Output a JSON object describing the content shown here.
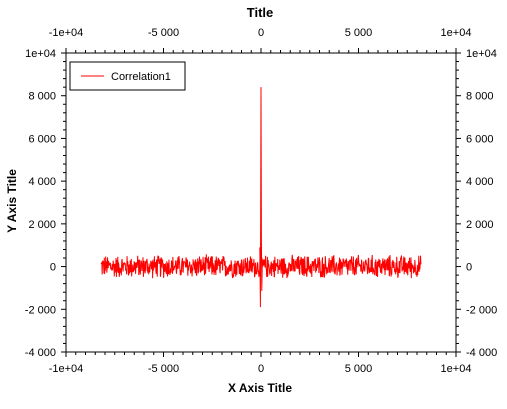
{
  "chart_data": {
    "type": "line",
    "title": "Title",
    "xlabel": "X Axis Title",
    "ylabel": "Y Axis Title",
    "xlim": [
      -10000,
      10000
    ],
    "ylim": [
      -4000,
      10000
    ],
    "x_ticks": [
      -10000,
      -5000,
      0,
      5000,
      10000
    ],
    "x_tick_labels": [
      "-1e+04",
      "-5 000",
      "0",
      "5 000",
      "1e+04"
    ],
    "y_ticks": [
      -4000,
      -2000,
      0,
      2000,
      4000,
      6000,
      8000,
      10000
    ],
    "y_tick_labels": [
      "-4 000",
      "-2 000",
      "0",
      "2 000",
      "4 000",
      "6 000",
      "8 000",
      "1e+04"
    ],
    "grid": false,
    "legend_position": "top-left",
    "series": [
      {
        "name": "Correlation1",
        "color": "#ff0000",
        "x_range": [
          -8200,
          8200
        ],
        "baseline_noise_amplitude": 600,
        "peak": {
          "x": 0,
          "y": 8400
        },
        "trough": {
          "x": 0,
          "y": -1900
        }
      }
    ]
  }
}
